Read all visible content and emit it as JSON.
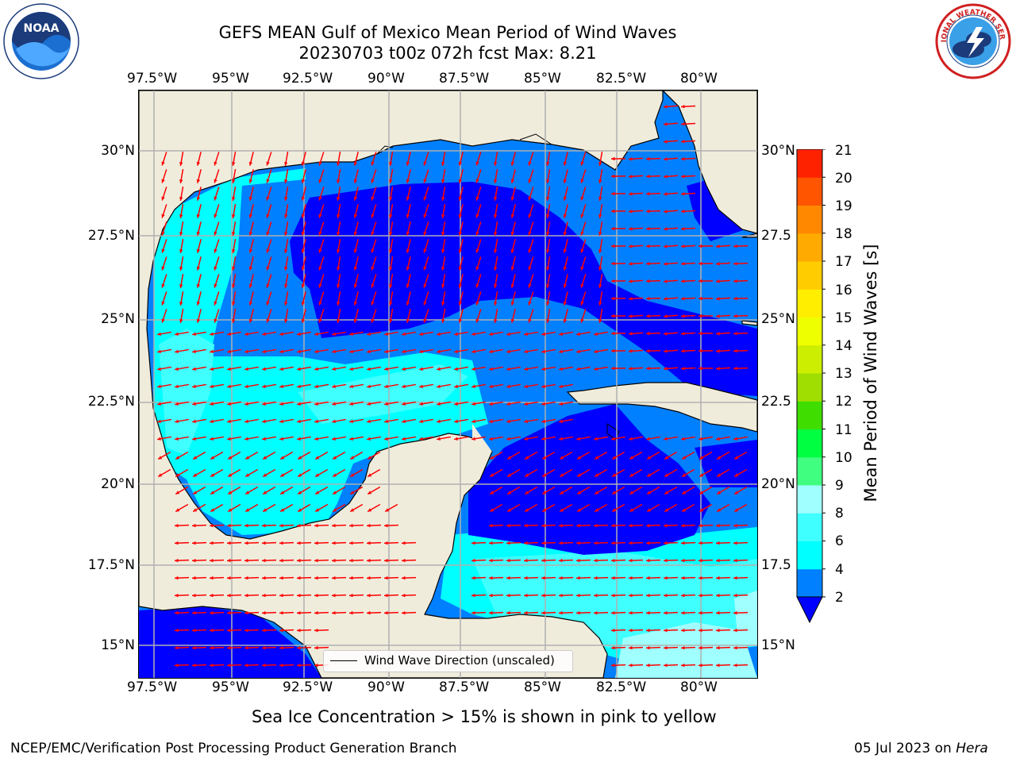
{
  "header": {
    "title_line1": "GEFS MEAN Gulf of Mexico Mean Period of Wind Waves",
    "title_line2": "20230703 t00z 072h fcst   Max: 8.21"
  },
  "logos": {
    "left": "noaa-logo",
    "right": "nws-logo",
    "left_text": "NOAA",
    "right_text": "NATIONAL WEATHER SERVICE"
  },
  "axes": {
    "lon_ticks": [
      "97.5°W",
      "95°W",
      "92.5°W",
      "90°W",
      "87.5°W",
      "85°W",
      "82.5°W",
      "80°W"
    ],
    "lat_ticks_left": [
      "30°N",
      "27.5°N",
      "25°N",
      "22.5°N",
      "20°N",
      "17.5°N",
      "15°N"
    ],
    "lat_ticks_right": [
      "30°N",
      "27.5",
      "25°N",
      "22.5",
      "20°N",
      "17.5",
      "15°N"
    ],
    "lon_range": [
      -98,
      -78.2
    ],
    "lat_range": [
      14.0,
      31.8
    ]
  },
  "colorbar": {
    "label": "Mean Period of Wind Waves [s]",
    "ticks": [
      "21",
      "20",
      "19",
      "18",
      "17",
      "16",
      "15",
      "14",
      "13",
      "12",
      "11",
      "10",
      "9",
      "8",
      "6",
      "4",
      "2"
    ],
    "colors": [
      "#0000ff",
      "#0080ff",
      "#00ffff",
      "#40ffff",
      "#a0ffff",
      "#40ff80",
      "#00ff40",
      "#40dd00",
      "#a0dd00",
      "#ccee00",
      "#eeff00",
      "#ffee00",
      "#ffcc00",
      "#ffaa00",
      "#ff8800",
      "#ff5500",
      "#ff2200",
      "#ff0000"
    ]
  },
  "legend": {
    "label": "Wind Wave Direction (unscaled)"
  },
  "note": "Sea Ice Concentration > 15% is shown in pink to yellow",
  "footer": {
    "left": "NCEP/EMC/Verification Post Processing Product Generation Branch",
    "right_date": "05 Jul 2023 on ",
    "right_host": "Hera"
  }
}
